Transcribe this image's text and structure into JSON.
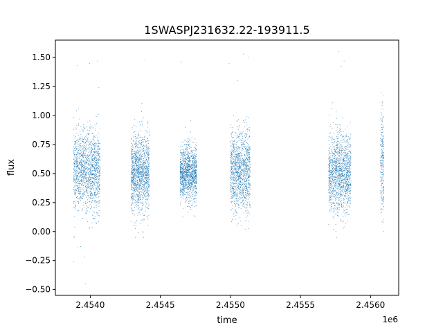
{
  "chart_data": {
    "type": "scatter",
    "title": "1SWASPJ231632.22-193911.5",
    "xlabel": "time",
    "ylabel": "flux",
    "x_offset_label": "1e6",
    "xlim": [
      2453750,
      2456200
    ],
    "ylim": [
      -0.55,
      1.65
    ],
    "x_ticks": [
      2453999,
      2454499,
      2454999,
      2455499,
      2455999
    ],
    "x_tick_labels": [
      "2.4540",
      "2.4545",
      "2.4550",
      "2.4555",
      "2.4560"
    ],
    "y_ticks": [
      -0.5,
      -0.25,
      0.0,
      0.25,
      0.5,
      0.75,
      1.0,
      1.25,
      1.5
    ],
    "y_tick_labels": [
      "−0.50",
      "−0.25",
      "0.00",
      "0.25",
      "0.50",
      "0.75",
      "1.00",
      "1.25",
      "1.50"
    ],
    "grid": false,
    "marker_color": "#1f77b4",
    "series": [
      {
        "clusters": [
          {
            "x_start": 2453880,
            "x_end": 2454070,
            "center": 0.52,
            "spread": 0.17,
            "points": 1500
          },
          {
            "x_start": 2454290,
            "x_end": 2454420,
            "center": 0.5,
            "spread": 0.17,
            "points": 1400
          },
          {
            "x_start": 2454640,
            "x_end": 2454760,
            "center": 0.5,
            "spread": 0.12,
            "points": 1300
          },
          {
            "x_start": 2455000,
            "x_end": 2455140,
            "center": 0.52,
            "spread": 0.17,
            "points": 1300
          },
          {
            "x_start": 2455700,
            "x_end": 2455860,
            "center": 0.5,
            "spread": 0.17,
            "points": 1500
          },
          {
            "x_start": 2456070,
            "x_end": 2456095,
            "center": 0.6,
            "spread": 0.22,
            "points": 250
          }
        ],
        "outliers": [
          [
            2453880,
            -0.26
          ],
          [
            2453905,
            -0.14
          ],
          [
            2453930,
            -0.13
          ],
          [
            2453960,
            -0.22
          ],
          [
            2453965,
            -0.45
          ],
          [
            2453905,
            1.43
          ],
          [
            2453995,
            1.45
          ],
          [
            2454050,
            1.47
          ],
          [
            2454060,
            1.24
          ],
          [
            2454390,
            1.48
          ],
          [
            2454650,
            1.46
          ],
          [
            2454990,
            1.45
          ],
          [
            2455090,
            1.53
          ],
          [
            2455125,
            1.5
          ],
          [
            2455050,
            1.3
          ],
          [
            2455770,
            1.55
          ],
          [
            2455810,
            1.47
          ],
          [
            2455790,
            1.42
          ]
        ]
      }
    ]
  }
}
